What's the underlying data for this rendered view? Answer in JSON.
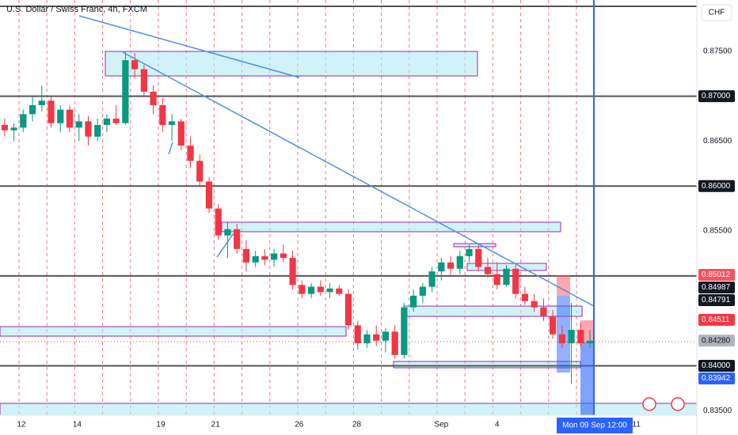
{
  "chart_data": {
    "type": "candlestick",
    "title": "U.S. Dollar / Swiss Franc, 4h, FXCM",
    "currency": "CHF",
    "up_color": "#089981",
    "down_color": "#f23645",
    "open": [
      0.8668,
      0.8662,
      0.8665,
      0.868,
      0.869,
      0.8695,
      0.867,
      0.8685,
      0.8665,
      0.8672,
      0.8655,
      0.8668,
      0.8675,
      0.867,
      0.874,
      0.873,
      0.8705,
      0.869,
      0.8668,
      0.8672,
      0.8645,
      0.8628,
      0.8605,
      0.8575,
      0.8545,
      0.8552,
      0.853,
      0.8515,
      0.8522,
      0.8518,
      0.8525,
      0.852,
      0.849,
      0.848,
      0.8488,
      0.8482,
      0.8486,
      0.848,
      0.8445,
      0.8425,
      0.8435,
      0.8428,
      0.8438,
      0.8412,
      0.8465,
      0.8478,
      0.8488,
      0.8505,
      0.8515,
      0.8508,
      0.8522,
      0.853,
      0.851,
      0.8502,
      0.849,
      0.8508,
      0.848,
      0.8472,
      0.8465,
      0.8455,
      0.8435,
      0.8425,
      0.844,
      0.8425
    ],
    "high": [
      0.8675,
      0.867,
      0.8685,
      0.87,
      0.8712,
      0.87,
      0.869,
      0.869,
      0.868,
      0.8678,
      0.8675,
      0.868,
      0.869,
      0.875,
      0.8748,
      0.8735,
      0.8712,
      0.8698,
      0.868,
      0.8675,
      0.8655,
      0.8635,
      0.861,
      0.858,
      0.856,
      0.8558,
      0.854,
      0.8528,
      0.853,
      0.853,
      0.8535,
      0.8528,
      0.8495,
      0.8492,
      0.8495,
      0.8492,
      0.849,
      0.8485,
      0.845,
      0.844,
      0.8445,
      0.8442,
      0.8445,
      0.847,
      0.8485,
      0.8492,
      0.851,
      0.852,
      0.8522,
      0.8528,
      0.8535,
      0.8535,
      0.852,
      0.8515,
      0.8512,
      0.8512,
      0.8488,
      0.848,
      0.8475,
      0.8462,
      0.8445,
      0.847,
      0.8448,
      0.844
    ],
    "low": [
      0.8655,
      0.865,
      0.866,
      0.8672,
      0.8683,
      0.8665,
      0.866,
      0.866,
      0.865,
      0.8645,
      0.865,
      0.866,
      0.8668,
      0.8668,
      0.872,
      0.87,
      0.868,
      0.866,
      0.865,
      0.864,
      0.862,
      0.86,
      0.857,
      0.854,
      0.852,
      0.8525,
      0.8505,
      0.851,
      0.8512,
      0.851,
      0.8515,
      0.8485,
      0.8475,
      0.8475,
      0.8478,
      0.8475,
      0.8478,
      0.844,
      0.8418,
      0.842,
      0.8422,
      0.8415,
      0.8408,
      0.8408,
      0.846,
      0.847,
      0.8482,
      0.8495,
      0.85,
      0.8502,
      0.8515,
      0.8505,
      0.8498,
      0.8485,
      0.8488,
      0.8475,
      0.8468,
      0.846,
      0.845,
      0.843,
      0.842,
      0.838,
      0.842,
      0.842
    ],
    "close": [
      0.8662,
      0.8665,
      0.868,
      0.869,
      0.8695,
      0.867,
      0.8685,
      0.8665,
      0.8672,
      0.8655,
      0.8668,
      0.8675,
      0.867,
      0.874,
      0.873,
      0.8705,
      0.869,
      0.8668,
      0.8672,
      0.8645,
      0.8628,
      0.8605,
      0.8575,
      0.8545,
      0.8552,
      0.853,
      0.8515,
      0.8522,
      0.8518,
      0.8525,
      0.852,
      0.849,
      0.848,
      0.8488,
      0.8482,
      0.8486,
      0.848,
      0.8445,
      0.8425,
      0.8435,
      0.8428,
      0.8438,
      0.8412,
      0.8465,
      0.8478,
      0.8488,
      0.8505,
      0.8515,
      0.8508,
      0.8522,
      0.853,
      0.851,
      0.8502,
      0.849,
      0.8508,
      0.848,
      0.8472,
      0.8465,
      0.8455,
      0.8435,
      0.8425,
      0.844,
      0.8425,
      0.8428
    ],
    "xlim": [
      -0.5,
      74.5
    ],
    "xticks": [
      {
        "value": 1.8,
        "label": "12"
      },
      {
        "value": 7.8,
        "label": "14"
      },
      {
        "value": 16.8,
        "label": "19"
      },
      {
        "value": 22.7,
        "label": "21"
      },
      {
        "value": 31.7,
        "label": "26"
      },
      {
        "value": 37.9,
        "label": "28"
      },
      {
        "value": 47,
        "label": "Sep"
      },
      {
        "value": 53,
        "label": "4"
      },
      {
        "value": 68,
        "label": "11"
      }
    ],
    "ylim": [
      0.8345,
      0.8807
    ],
    "yticks": [
      {
        "value": 0.875,
        "label": "0.87500"
      },
      {
        "value": 0.865,
        "label": "0.86500"
      },
      {
        "value": 0.855,
        "label": "0.85500"
      },
      {
        "value": 0.835,
        "label": "0.83500"
      }
    ],
    "levels": [
      0.88,
      0.87,
      0.86,
      0.85,
      0.84
    ],
    "price_tags": [
      {
        "value": 0.87,
        "label": "0.87000",
        "color": "#131722"
      },
      {
        "value": 0.86,
        "label": "0.86000",
        "color": "#131722"
      },
      {
        "value": 0.85012,
        "label": "0.85012",
        "color": "#f7525f"
      },
      {
        "value": 0.84987,
        "label": "0.84987",
        "color": "#131722"
      },
      {
        "value": 0.84791,
        "label": "0.84791",
        "color": "#131722"
      },
      {
        "value": 0.84511,
        "label": "0.84511",
        "color": "#f23645"
      },
      {
        "value": 0.8428,
        "label": "0.84280",
        "color": "#b2b5be"
      },
      {
        "value": 0.84,
        "label": "0.84000",
        "color": "#131722"
      },
      {
        "value": 0.83942,
        "label": "0.83942",
        "color": "#2962ff"
      }
    ],
    "crosshair_time": "Mon 09 Sep   12:00"
  }
}
